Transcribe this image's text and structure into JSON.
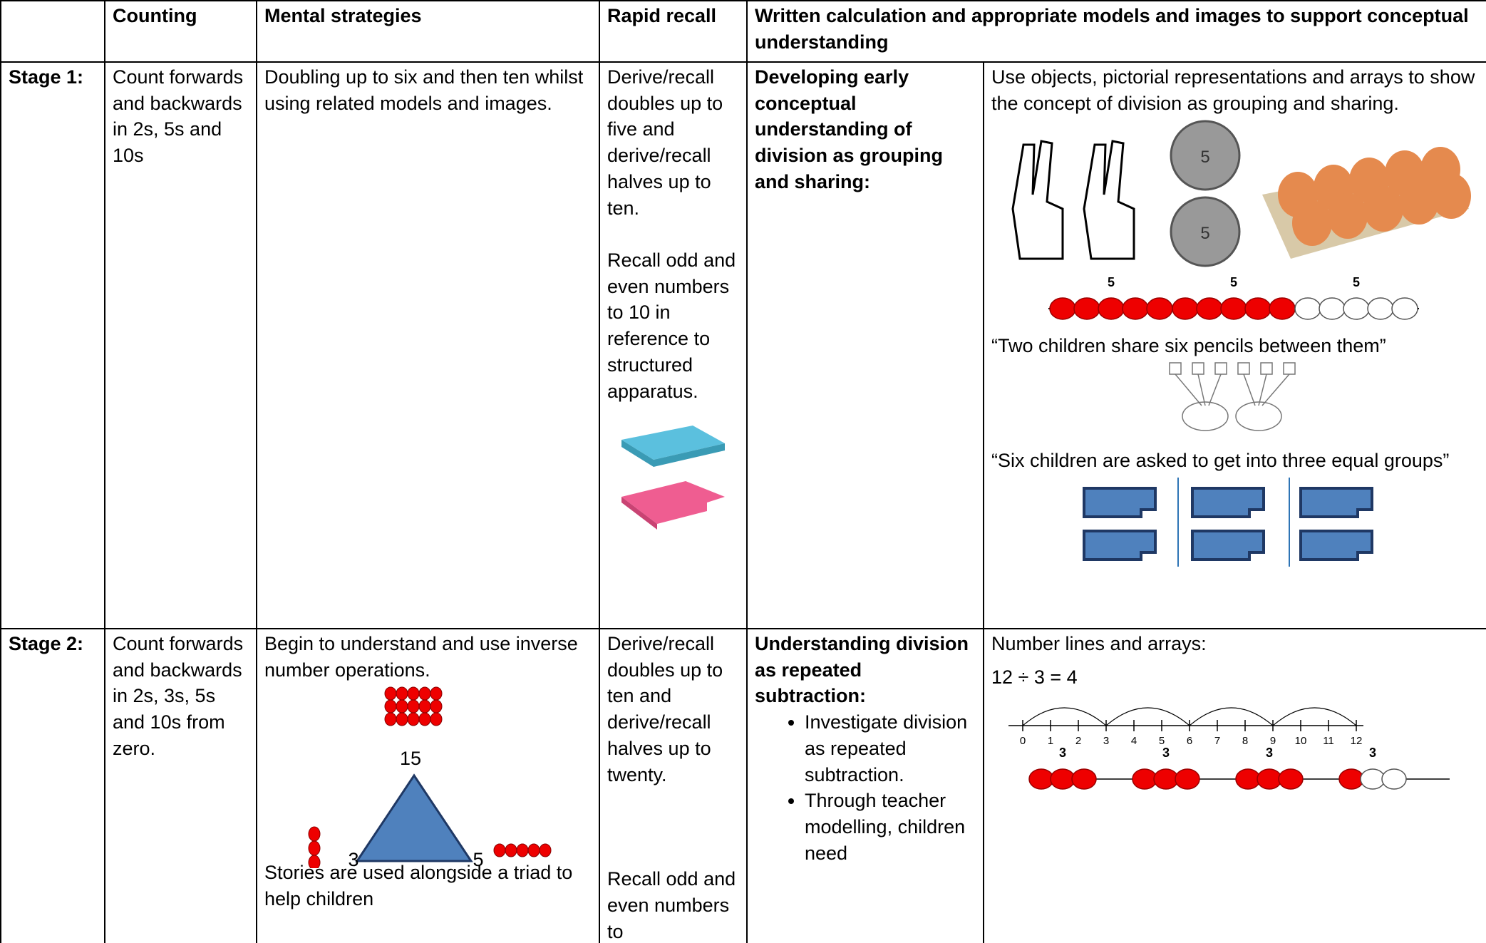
{
  "header": {
    "counting": "Counting",
    "mental": "Mental strategies",
    "rapid": "Rapid recall",
    "written": "Written calculation and appropriate models and images to support conceptual understanding"
  },
  "rows": [
    {
      "stage": "Stage 1:",
      "counting": "Count forwards and backwards in 2s, 5s and 10s",
      "mental": "Doubling up to six and then ten whilst using related models and images.",
      "rapid": [
        "Derive/recall doubles up to five and derive/recall halves up to ten.",
        "Recall odd and even numbers to 10 in reference to structured apparatus."
      ],
      "heading": "Developing early conceptual understanding of division as grouping and sharing:",
      "text": "Use objects, pictorial representations and arrays to show the concept of division as grouping and sharing.",
      "coin_label": 5,
      "bead_labels": [
        5,
        5,
        5
      ],
      "quotes": [
        "“Two children share six pencils between them”",
        "“Six children are asked to get into three equal groups”"
      ]
    },
    {
      "stage": "Stage 2:",
      "counting": "Count forwards and backwards in 2s, 3s, 5s and 10s from zero.",
      "mental": "Begin to understand and use inverse number operations.",
      "triad": [
        15,
        3,
        5
      ],
      "mental_after": "Stories are used alongside a triad to help children",
      "rapid": [
        "Derive/recall doubles up to ten and derive/recall halves up to twenty.",
        "Recall odd and even numbers to"
      ],
      "heading": "Understanding division as repeated subtraction:",
      "bullets": [
        "Investigate division as repeated subtraction.",
        "Through teacher modelling, children need"
      ],
      "text": "Number lines and arrays:",
      "equation": "12 ÷ 3 = 4",
      "number_line": [
        0,
        1,
        2,
        3,
        4,
        5,
        6,
        7,
        8,
        9,
        10,
        11,
        12
      ],
      "bead_labels": [
        3,
        3,
        3,
        3
      ]
    }
  ]
}
